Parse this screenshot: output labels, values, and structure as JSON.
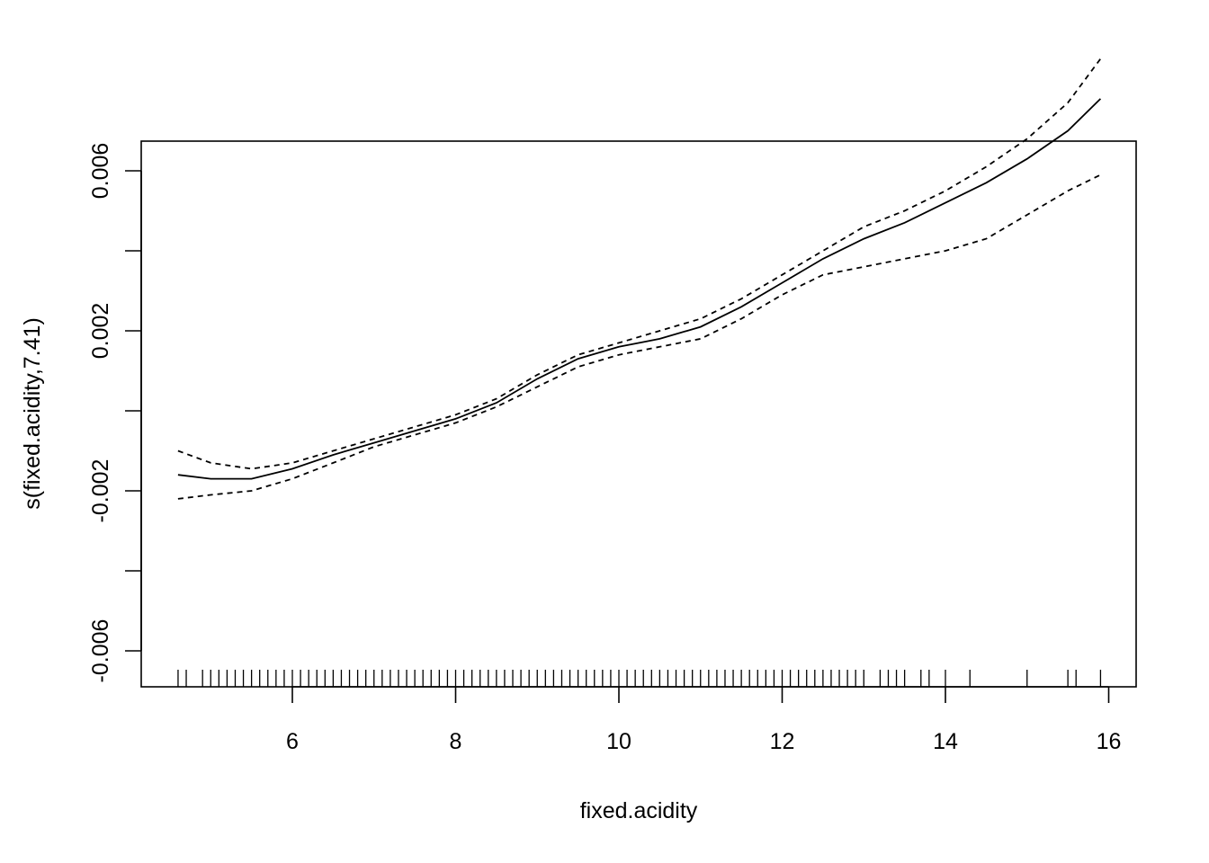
{
  "chart_data": {
    "type": "line",
    "xlabel": "fixed.acidity",
    "ylabel": "s(fixed.acidity,7.41)",
    "xlim": [
      4.6,
      15.9
    ],
    "ylim": [
      -0.007,
      0.0075
    ],
    "x_ticks": [
      6,
      8,
      10,
      12,
      14,
      16
    ],
    "x_tick_labels": [
      "6",
      "8",
      "10",
      "12",
      "14",
      "16"
    ],
    "y_ticks": [
      -0.006,
      -0.004,
      -0.002,
      0.0,
      0.002,
      0.004,
      0.006
    ],
    "y_tick_labels": [
      "-0.006",
      "",
      "-0.002",
      "",
      "0.002",
      "",
      "0.006"
    ],
    "grid": false,
    "series": [
      {
        "role": "estimate",
        "style": "solid",
        "x": [
          4.6,
          5.0,
          5.5,
          6.0,
          6.5,
          7.0,
          7.5,
          8.0,
          8.5,
          9.0,
          9.5,
          10.0,
          10.5,
          11.0,
          11.5,
          12.0,
          12.5,
          13.0,
          13.5,
          14.0,
          14.5,
          15.0,
          15.5,
          15.9
        ],
        "y": [
          -0.0016,
          -0.0017,
          -0.0017,
          -0.00145,
          -0.0011,
          -0.0008,
          -0.0005,
          -0.0002,
          0.0002,
          0.0008,
          0.0013,
          0.0016,
          0.0018,
          0.0021,
          0.0026,
          0.0032,
          0.0038,
          0.0043,
          0.0047,
          0.0052,
          0.0057,
          0.0063,
          0.007,
          0.0078
        ]
      },
      {
        "role": "upper-band",
        "style": "dashed",
        "x": [
          4.6,
          5.0,
          5.5,
          6.0,
          6.5,
          7.0,
          7.5,
          8.0,
          8.5,
          9.0,
          9.5,
          10.0,
          10.5,
          11.0,
          11.5,
          12.0,
          12.5,
          13.0,
          13.5,
          14.0,
          14.5,
          15.0,
          15.5,
          15.9
        ],
        "y": [
          -0.001,
          -0.0013,
          -0.00145,
          -0.0013,
          -0.001,
          -0.0007,
          -0.0004,
          -0.0001,
          0.0003,
          0.0009,
          0.0014,
          0.0017,
          0.002,
          0.0023,
          0.0028,
          0.0034,
          0.004,
          0.0046,
          0.005,
          0.0055,
          0.0061,
          0.0068,
          0.0077,
          0.0088
        ]
      },
      {
        "role": "lower-band",
        "style": "dashed",
        "x": [
          4.6,
          5.0,
          5.5,
          6.0,
          6.5,
          7.0,
          7.5,
          8.0,
          8.5,
          9.0,
          9.5,
          10.0,
          10.5,
          11.0,
          11.5,
          12.0,
          12.5,
          13.0,
          13.5,
          14.0,
          14.5,
          15.0,
          15.5,
          15.9
        ],
        "y": [
          -0.0022,
          -0.0021,
          -0.002,
          -0.0017,
          -0.0013,
          -0.0009,
          -0.0006,
          -0.0003,
          0.0001,
          0.0006,
          0.0011,
          0.0014,
          0.0016,
          0.0018,
          0.0023,
          0.0029,
          0.0034,
          0.0036,
          0.0038,
          0.004,
          0.0043,
          0.0049,
          0.0055,
          0.0059
        ]
      }
    ],
    "rug": [
      4.6,
      4.7,
      4.9,
      5.0,
      5.1,
      5.2,
      5.3,
      5.4,
      5.5,
      5.6,
      5.7,
      5.8,
      5.9,
      6.0,
      6.1,
      6.2,
      6.3,
      6.4,
      6.5,
      6.6,
      6.7,
      6.8,
      6.9,
      7.0,
      7.1,
      7.2,
      7.3,
      7.4,
      7.5,
      7.6,
      7.7,
      7.8,
      7.9,
      8.0,
      8.1,
      8.2,
      8.3,
      8.4,
      8.5,
      8.6,
      8.7,
      8.8,
      8.9,
      9.0,
      9.1,
      9.2,
      9.3,
      9.4,
      9.5,
      9.6,
      9.7,
      9.8,
      9.9,
      10.0,
      10.1,
      10.2,
      10.3,
      10.4,
      10.5,
      10.6,
      10.7,
      10.8,
      10.9,
      11.0,
      11.1,
      11.2,
      11.3,
      11.4,
      11.5,
      11.6,
      11.7,
      11.8,
      11.9,
      12.0,
      12.1,
      12.2,
      12.3,
      12.4,
      12.5,
      12.6,
      12.7,
      12.8,
      12.9,
      13.0,
      13.2,
      13.3,
      13.4,
      13.5,
      13.7,
      13.8,
      14.0,
      14.3,
      15.0,
      15.5,
      15.6,
      15.9
    ]
  }
}
